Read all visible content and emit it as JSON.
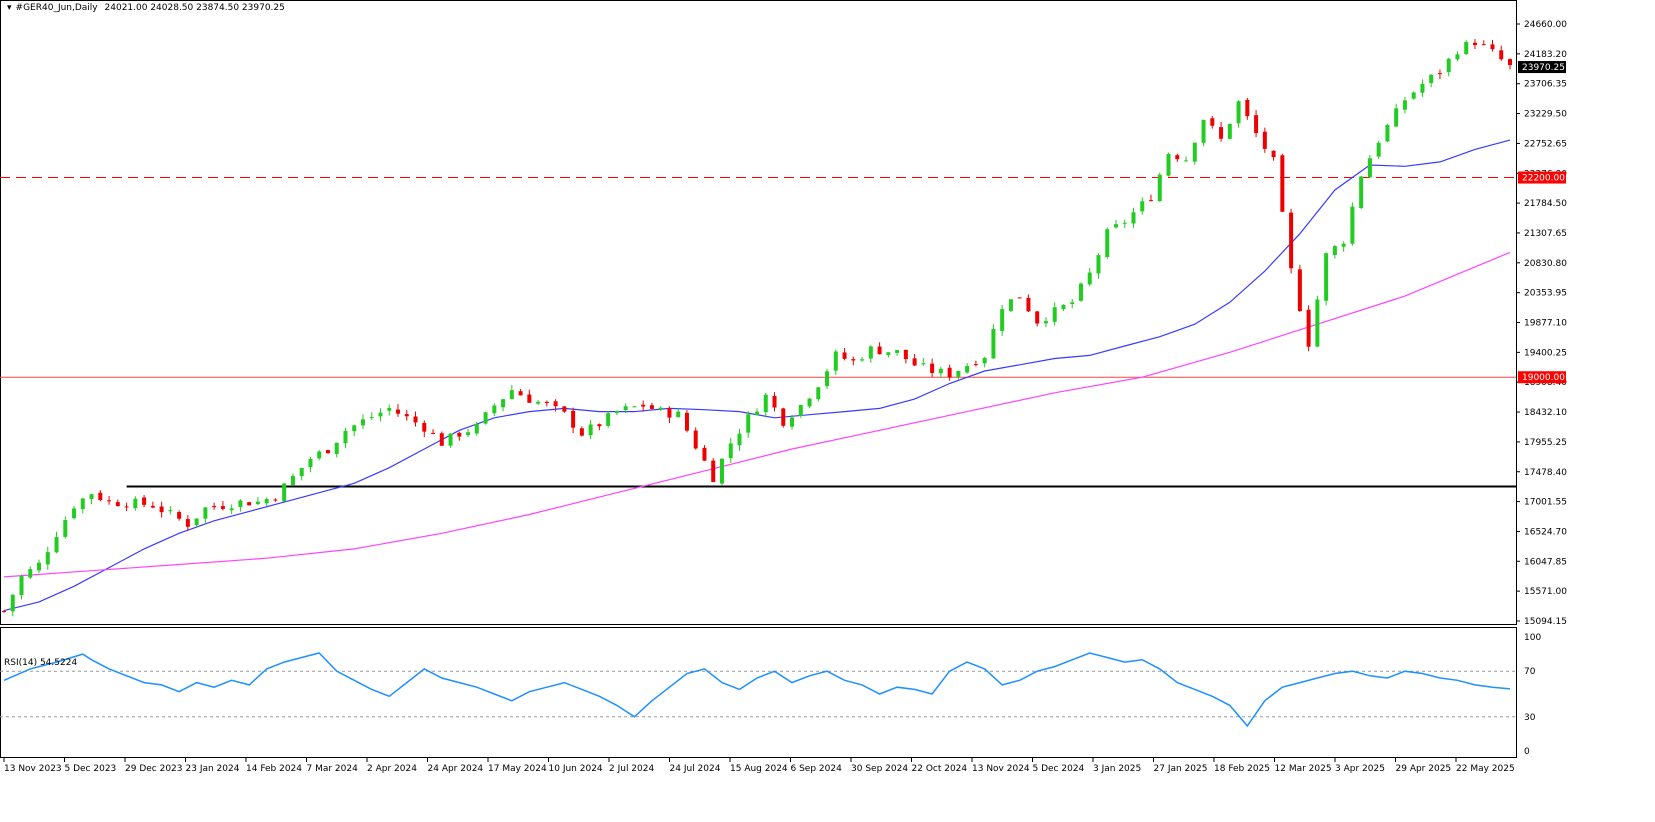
{
  "header": {
    "symbol": "#GER40_Jun,Daily",
    "ohlc": "24021.00 24028.50 23874.50 23970.25"
  },
  "rsi": {
    "label": "RSI(14) 54.5224"
  },
  "colors": {
    "bull": "#22cc22",
    "bear": "#ee0000",
    "ma_fast": "#3a3aff",
    "ma_slow": "#ff44ff",
    "level_dashed": "#ff0000",
    "level_solid": "#ff4444",
    "support": "#000000",
    "rsi_line": "#1e90ff",
    "price_box": "#000000",
    "level_box": "#ff0000"
  },
  "chart_data": [
    {
      "type": "line",
      "title": "#GER40_Jun,Daily",
      "x_tick_labels": [
        "13 Nov 2023",
        "5 Dec 2023",
        "29 Dec 2023",
        "23 Jan 2024",
        "14 Feb 2024",
        "7 Mar 2024",
        "2 Apr 2024",
        "24 Apr 2024",
        "17 May 2024",
        "10 Jun 2024",
        "2 Jul 2024",
        "24 Jul 2024",
        "15 Aug 2024",
        "6 Sep 2024",
        "30 Sep 2024",
        "22 Oct 2024",
        "13 Nov 2024",
        "5 Dec 2024",
        "3 Jan 2025",
        "27 Jan 2025",
        "18 Feb 2025",
        "12 Mar 2025",
        "3 Apr 2025",
        "29 Apr 2025",
        "22 May 2025"
      ],
      "y_tick_labels": [
        "24660.00",
        "24183.20",
        "23706.35",
        "23229.50",
        "22752.65",
        "22276.80",
        "21784.50",
        "21307.65",
        "20830.80",
        "20353.95",
        "19877.10",
        "19400.25",
        "18908.40",
        "18432.10",
        "17955.25",
        "17478.40",
        "17001.55",
        "16524.70",
        "16047.85",
        "15571.00",
        "15094.15"
      ],
      "ylim": [
        15094.15,
        24660.0
      ],
      "grid": false,
      "current_price": "23970.25",
      "levels": [
        {
          "name": "resistance-dashed",
          "value": 22200.0,
          "label": "22200.00",
          "style": "dashed"
        },
        {
          "name": "support-solid",
          "value": 19000.0,
          "label": "19000.00",
          "style": "solid"
        },
        {
          "name": "breakout-line",
          "value": 17250.0,
          "label": "",
          "style": "solid-black"
        }
      ],
      "ohlc_series": {
        "name": "candles",
        "close_path": [
          [
            "13 Nov 2023",
            15250
          ],
          [
            "17 Nov 2023",
            15800
          ],
          [
            "24 Nov 2023",
            16000
          ],
          [
            "1 Dec 2023",
            16500
          ],
          [
            "5 Dec 2023",
            16950
          ],
          [
            "8 Dec 2023",
            17150
          ],
          [
            "15 Dec 2023",
            17000
          ],
          [
            "22 Dec 2023",
            16980
          ],
          [
            "29 Dec 2023",
            16950
          ],
          [
            "5 Jan 2024",
            16800
          ],
          [
            "12 Jan 2024",
            16650
          ],
          [
            "19 Jan 2024",
            16900
          ],
          [
            "23 Jan 2024",
            16950
          ],
          [
            "1 Feb 2024",
            17000
          ],
          [
            "8 Feb 2024",
            17000
          ],
          [
            "14 Feb 2024",
            17100
          ],
          [
            "21 Feb 2024",
            17400
          ],
          [
            "28 Feb 2024",
            17700
          ],
          [
            "7 Mar 2024",
            17850
          ],
          [
            "14 Mar 2024",
            18150
          ],
          [
            "21 Mar 2024",
            18300
          ],
          [
            "28 Mar 2024",
            18500
          ],
          [
            "2 Apr 2024",
            18350
          ],
          [
            "9 Apr 2024",
            18200
          ],
          [
            "16 Apr 2024",
            17950
          ],
          [
            "24 Apr 2024",
            18100
          ],
          [
            "2 May 2024",
            18200
          ],
          [
            "9 May 2024",
            18550
          ],
          [
            "17 May 2024",
            18800
          ],
          [
            "24 May 2024",
            18650
          ],
          [
            "31 May 2024",
            18550
          ],
          [
            "10 Jun 2024",
            18400
          ],
          [
            "14 Jun 2024",
            18100
          ],
          [
            "21 Jun 2024",
            18250
          ],
          [
            "2 Jul 2024",
            18450
          ],
          [
            "9 Jul 2024",
            18550
          ],
          [
            "16 Jul 2024",
            18450
          ],
          [
            "24 Jul 2024",
            18400
          ],
          [
            "30 Jul 2024",
            17900
          ],
          [
            "5 Aug 2024",
            17400
          ],
          [
            "15 Aug 2024",
            17950
          ],
          [
            "22 Aug 2024",
            18350
          ],
          [
            "30 Aug 2024",
            18700
          ],
          [
            "6 Sep 2024",
            18300
          ],
          [
            "13 Sep 2024",
            18550
          ],
          [
            "20 Sep 2024",
            18900
          ],
          [
            "30 Sep 2024",
            19350
          ],
          [
            "7 Oct 2024",
            19250
          ],
          [
            "14 Oct 2024",
            19450
          ],
          [
            "22 Oct 2024",
            19400
          ],
          [
            "30 Oct 2024",
            19200
          ],
          [
            "6 Nov 2024",
            19100
          ],
          [
            "13 Nov 2024",
            19050
          ],
          [
            "20 Nov 2024",
            19200
          ],
          [
            "28 Nov 2024",
            19350
          ],
          [
            "5 Dec 2024",
            20150
          ],
          [
            "12 Dec 2024",
            20300
          ],
          [
            "19 Dec 2024",
            19900
          ],
          [
            "3 Jan 2025",
            20050
          ],
          [
            "10 Jan 2025",
            20200
          ],
          [
            "17 Jan 2025",
            20650
          ],
          [
            "27 Jan 2025",
            21300
          ],
          [
            "3 Feb 2025",
            21500
          ],
          [
            "10 Feb 2025",
            21900
          ],
          [
            "18 Feb 2025",
            22600
          ],
          [
            "25 Feb 2025",
            22500
          ],
          [
            "5 Mar 2025",
            23150
          ],
          [
            "12 Mar 2025",
            22800
          ],
          [
            "18 Mar 2025",
            23400
          ],
          [
            "25 Mar 2025",
            22900
          ],
          [
            "31 Mar 2025",
            22450
          ],
          [
            "3 Apr 2025",
            20700
          ],
          [
            "7 Apr 2025",
            19550
          ],
          [
            "10 Apr 2025",
            20950
          ],
          [
            "17 Apr 2025",
            21200
          ],
          [
            "24 Apr 2025",
            22250
          ],
          [
            "29 Apr 2025",
            22800
          ],
          [
            "6 May 2025",
            23450
          ],
          [
            "13 May 2025",
            23700
          ],
          [
            "22 May 2025",
            23900
          ],
          [
            "29 May 2025",
            24250
          ],
          [
            "4 Jun 2025",
            24380
          ],
          [
            "10 Jun 2025",
            24200
          ],
          [
            "13 Jun 2025",
            23970
          ]
        ]
      },
      "series": [
        {
          "name": "",
          "color_key": "ma_fast",
          "values": [
            [
              0,
              15260
            ],
            [
              4,
              15400
            ],
            [
              8,
              15650
            ],
            [
              12,
              15950
            ],
            [
              16,
              16250
            ],
            [
              20,
              16500
            ],
            [
              24,
              16700
            ],
            [
              28,
              16850
            ],
            [
              32,
              17000
            ],
            [
              36,
              17150
            ],
            [
              40,
              17300
            ],
            [
              44,
              17550
            ],
            [
              48,
              17850
            ],
            [
              52,
              18150
            ],
            [
              56,
              18350
            ],
            [
              60,
              18450
            ],
            [
              64,
              18500
            ],
            [
              68,
              18450
            ],
            [
              72,
              18450
            ],
            [
              76,
              18500
            ],
            [
              80,
              18480
            ],
            [
              84,
              18450
            ],
            [
              88,
              18350
            ],
            [
              92,
              18400
            ],
            [
              96,
              18450
            ],
            [
              100,
              18500
            ],
            [
              104,
              18650
            ],
            [
              108,
              18900
            ],
            [
              112,
              19100
            ],
            [
              116,
              19200
            ],
            [
              120,
              19300
            ],
            [
              124,
              19350
            ],
            [
              128,
              19500
            ],
            [
              132,
              19650
            ],
            [
              136,
              19850
            ],
            [
              140,
              20200
            ],
            [
              144,
              20700
            ],
            [
              148,
              21300
            ],
            [
              152,
              22000
            ],
            [
              156,
              22400
            ],
            [
              160,
              22380
            ],
            [
              164,
              22450
            ],
            [
              168,
              22650
            ],
            [
              172,
              22800
            ]
          ]
        },
        {
          "name": "",
          "color_key": "ma_slow",
          "values": [
            [
              0,
              15800
            ],
            [
              10,
              15900
            ],
            [
              20,
              16000
            ],
            [
              30,
              16100
            ],
            [
              40,
              16250
            ],
            [
              50,
              16500
            ],
            [
              60,
              16800
            ],
            [
              70,
              17150
            ],
            [
              80,
              17500
            ],
            [
              90,
              17850
            ],
            [
              100,
              18150
            ],
            [
              110,
              18450
            ],
            [
              120,
              18750
            ],
            [
              130,
              19000
            ],
            [
              140,
              19400
            ],
            [
              150,
              19850
            ],
            [
              160,
              20300
            ],
            [
              172,
              21000
            ]
          ]
        }
      ]
    },
    {
      "type": "line",
      "title": "RSI(14) 54.5224",
      "ylim": [
        0,
        100
      ],
      "y_tick_labels": [
        "100",
        "70",
        "30",
        "0"
      ],
      "levels": [
        {
          "value": 70
        },
        {
          "value": 30
        }
      ],
      "series": [
        {
          "name": "RSI(14)",
          "color_key": "rsi_line",
          "values": [
            [
              0,
              62
            ],
            [
              3,
              72
            ],
            [
              6,
              78
            ],
            [
              9,
              85
            ],
            [
              10,
              80
            ],
            [
              12,
              72
            ],
            [
              14,
              66
            ],
            [
              16,
              60
            ],
            [
              18,
              58
            ],
            [
              20,
              52
            ],
            [
              22,
              60
            ],
            [
              24,
              56
            ],
            [
              26,
              62
            ],
            [
              28,
              58
            ],
            [
              30,
              72
            ],
            [
              32,
              78
            ],
            [
              34,
              82
            ],
            [
              36,
              86
            ],
            [
              38,
              70
            ],
            [
              40,
              62
            ],
            [
              42,
              54
            ],
            [
              44,
              48
            ],
            [
              46,
              60
            ],
            [
              48,
              72
            ],
            [
              50,
              64
            ],
            [
              52,
              60
            ],
            [
              54,
              56
            ],
            [
              56,
              50
            ],
            [
              58,
              44
            ],
            [
              60,
              52
            ],
            [
              62,
              56
            ],
            [
              64,
              60
            ],
            [
              66,
              54
            ],
            [
              68,
              48
            ],
            [
              70,
              40
            ],
            [
              72,
              30
            ],
            [
              74,
              44
            ],
            [
              76,
              56
            ],
            [
              78,
              68
            ],
            [
              80,
              72
            ],
            [
              82,
              60
            ],
            [
              84,
              54
            ],
            [
              86,
              64
            ],
            [
              88,
              70
            ],
            [
              90,
              60
            ],
            [
              92,
              66
            ],
            [
              94,
              70
            ],
            [
              96,
              62
            ],
            [
              98,
              58
            ],
            [
              100,
              50
            ],
            [
              102,
              56
            ],
            [
              104,
              54
            ],
            [
              106,
              50
            ],
            [
              108,
              70
            ],
            [
              110,
              78
            ],
            [
              112,
              72
            ],
            [
              114,
              58
            ],
            [
              116,
              62
            ],
            [
              118,
              70
            ],
            [
              120,
              74
            ],
            [
              122,
              80
            ],
            [
              124,
              86
            ],
            [
              126,
              82
            ],
            [
              128,
              78
            ],
            [
              130,
              80
            ],
            [
              132,
              72
            ],
            [
              134,
              60
            ],
            [
              136,
              54
            ],
            [
              138,
              48
            ],
            [
              140,
              40
            ],
            [
              142,
              22
            ],
            [
              144,
              44
            ],
            [
              146,
              56
            ],
            [
              148,
              60
            ],
            [
              150,
              64
            ],
            [
              152,
              68
            ],
            [
              154,
              70
            ],
            [
              156,
              66
            ],
            [
              158,
              64
            ],
            [
              160,
              70
            ],
            [
              162,
              68
            ],
            [
              164,
              64
            ],
            [
              166,
              62
            ],
            [
              168,
              58
            ],
            [
              170,
              56
            ],
            [
              172,
              54.5
            ]
          ]
        }
      ]
    }
  ]
}
